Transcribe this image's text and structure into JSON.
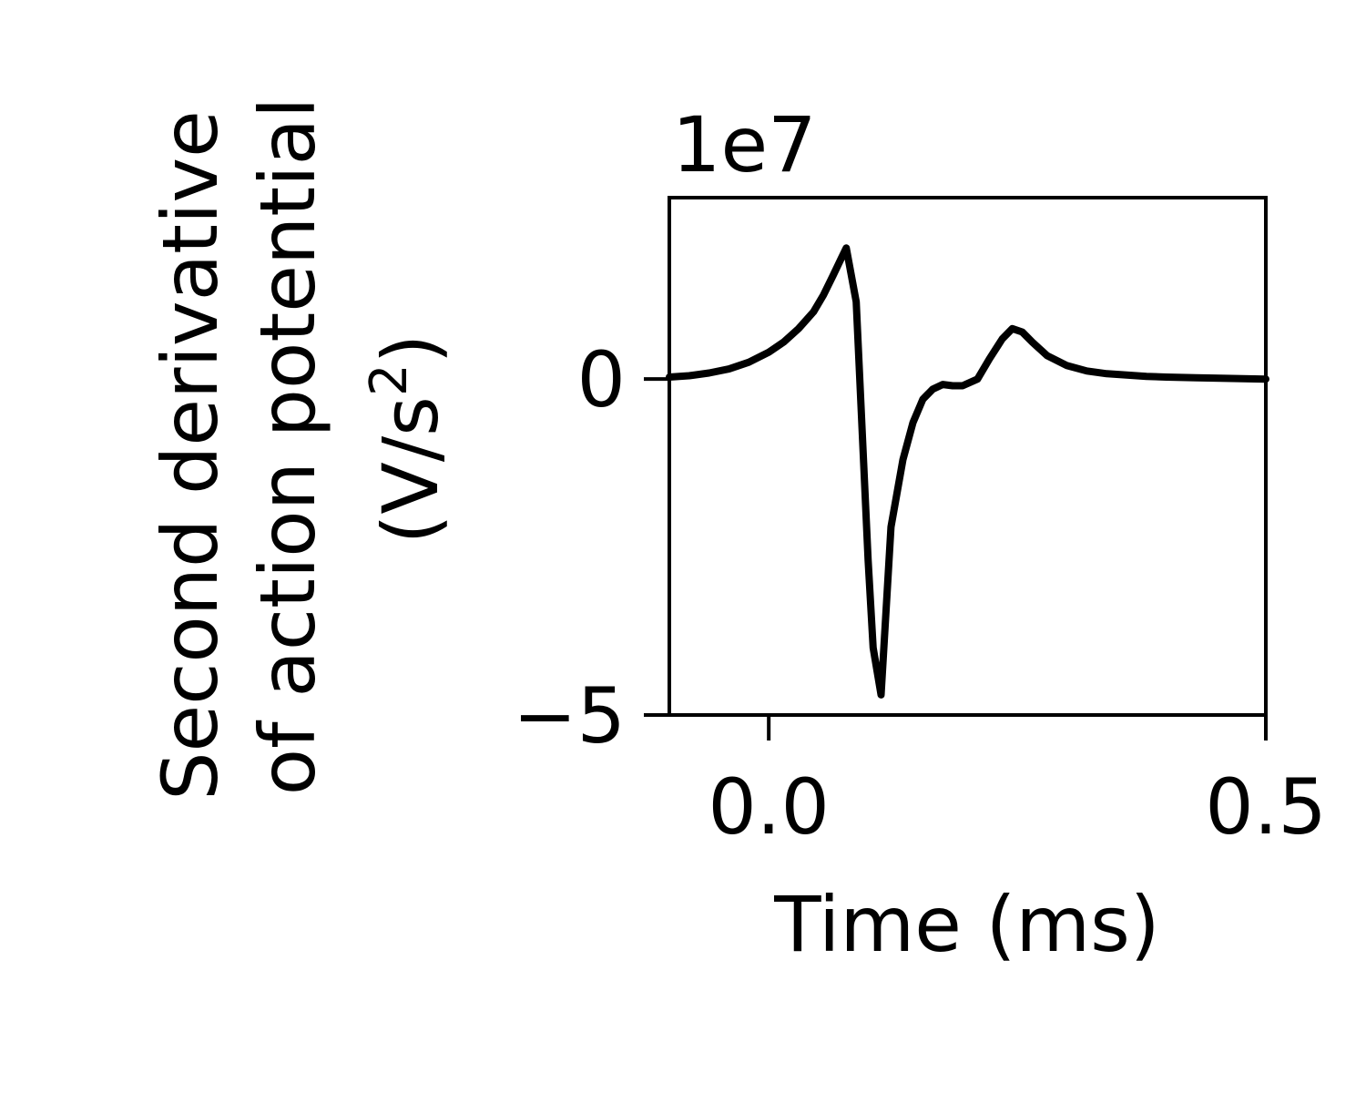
{
  "chart_data": {
    "type": "line",
    "title": "",
    "xlabel": "Time (ms)",
    "ylabel": {
      "line1": "Second derivative",
      "line2": "of action potential",
      "line3_prefix": "(V/s",
      "line3_sup": "2",
      "line3_suffix": ")"
    },
    "offset_text": "1e7",
    "xlim": [
      -0.1,
      0.5
    ],
    "ylim": [
      -5.0,
      2.7
    ],
    "xticks": [
      {
        "value": 0.0,
        "label": "0.0"
      },
      {
        "value": 0.5,
        "label": "0.5"
      }
    ],
    "yticks": [
      {
        "value": 0,
        "label": "0"
      },
      {
        "value": -5,
        "label": "−5"
      }
    ],
    "grid": false,
    "legend": "none",
    "series": [
      {
        "color": "#000000",
        "x": [
          -0.1,
          -0.08,
          -0.06,
          -0.04,
          -0.02,
          -0.0,
          0.015,
          0.03,
          0.045,
          0.055,
          0.065,
          0.073,
          0.078,
          0.088,
          0.1,
          0.105,
          0.113,
          0.123,
          0.135,
          0.145,
          0.155,
          0.165,
          0.175,
          0.185,
          0.195,
          0.21,
          0.222,
          0.235,
          0.245,
          0.255,
          0.265,
          0.28,
          0.3,
          0.32,
          0.34,
          0.36,
          0.38,
          0.4,
          0.43,
          0.46,
          0.5
        ],
        "y": [
          0.03,
          0.05,
          0.09,
          0.15,
          0.25,
          0.4,
          0.55,
          0.75,
          1.0,
          1.25,
          1.55,
          1.8,
          1.95,
          1.15,
          -2.7,
          -4.0,
          -4.7,
          -2.2,
          -1.2,
          -0.65,
          -0.3,
          -0.15,
          -0.08,
          -0.1,
          -0.1,
          0.0,
          0.3,
          0.6,
          0.75,
          0.7,
          0.55,
          0.35,
          0.2,
          0.12,
          0.08,
          0.06,
          0.04,
          0.03,
          0.02,
          0.01,
          0.0
        ]
      }
    ]
  }
}
